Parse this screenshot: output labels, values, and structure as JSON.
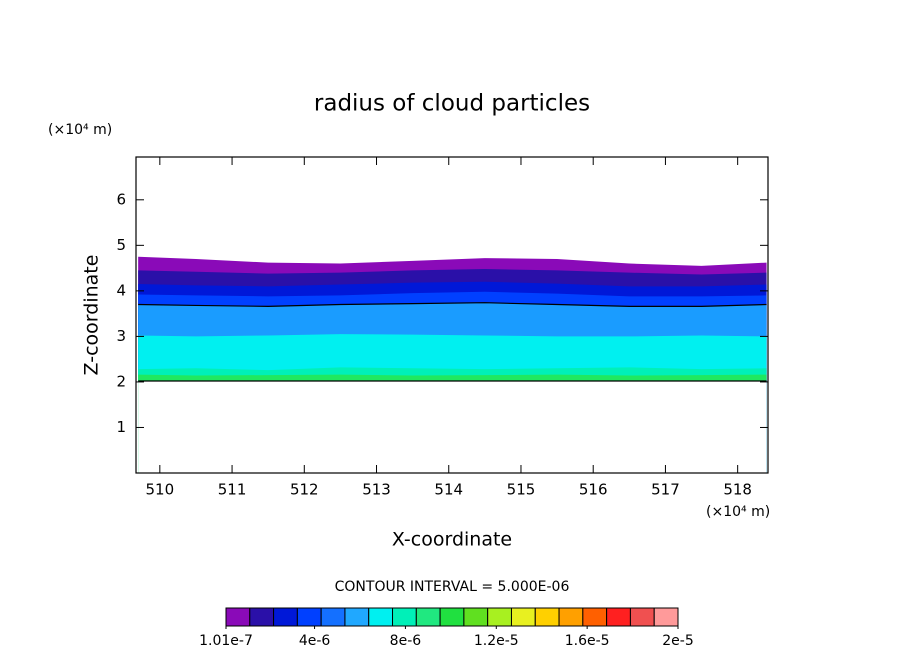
{
  "chart_data": {
    "type": "filled-contour",
    "title": "radius of cloud particles",
    "xlabel": "X-coordinate",
    "ylabel": "Z-coordinate",
    "x_unit_label": "(×10⁴ m)",
    "y_unit_label": "(×10⁴ m)",
    "xlim": [
      509.67,
      518.42
    ],
    "xticks": [
      510,
      511,
      512,
      513,
      514,
      515,
      516,
      517,
      518
    ],
    "ylim": [
      0,
      6.94
    ],
    "yticks": [
      1,
      2,
      3,
      4,
      5,
      6
    ],
    "x": [
      509.7,
      510.5,
      511.5,
      512.5,
      513.5,
      514.5,
      515.5,
      516.5,
      517.5,
      518.4
    ],
    "series": [
      {
        "color": "#8a0ab8",
        "values": [
          4.75,
          4.7,
          4.62,
          4.6,
          4.66,
          4.72,
          4.7,
          4.6,
          4.55,
          4.62
        ]
      },
      {
        "color": "#2a10a8",
        "values": [
          4.45,
          4.42,
          4.38,
          4.4,
          4.45,
          4.48,
          4.45,
          4.4,
          4.36,
          4.4
        ]
      },
      {
        "color": "#0018d8",
        "values": [
          4.15,
          4.12,
          4.1,
          4.14,
          4.18,
          4.2,
          4.16,
          4.1,
          4.1,
          4.14
        ]
      },
      {
        "color": "#0040ff",
        "values": [
          3.92,
          3.9,
          3.88,
          3.9,
          3.95,
          3.98,
          3.94,
          3.88,
          3.88,
          3.9
        ]
      },
      {
        "color": "#1a9cff",
        "values": [
          3.7,
          3.68,
          3.66,
          3.7,
          3.72,
          3.74,
          3.7,
          3.66,
          3.66,
          3.7
        ],
        "outline": "#000000"
      },
      {
        "color": "#00f0f0",
        "values": [
          3.02,
          3.0,
          3.02,
          3.05,
          3.04,
          3.02,
          3.0,
          3.0,
          3.02,
          3.0
        ]
      },
      {
        "color": "#00f0b8",
        "values": [
          2.28,
          2.3,
          2.26,
          2.32,
          2.3,
          2.28,
          2.3,
          2.32,
          2.28,
          2.3
        ]
      },
      {
        "color": "#20e860",
        "values": [
          2.16,
          2.14,
          2.15,
          2.16,
          2.14,
          2.15,
          2.16,
          2.14,
          2.15,
          2.16
        ]
      },
      {
        "color": "#ffffff",
        "values": [
          2.02,
          2.02,
          2.02,
          2.02,
          2.02,
          2.02,
          2.02,
          2.02,
          2.02,
          2.02
        ],
        "outline": "#000000"
      }
    ],
    "contour_interval_label": "CONTOUR INTERVAL = 5.000E-06",
    "colorbar": {
      "range": [
        1.01e-07,
        2e-05
      ],
      "colors": [
        "#8a0ab8",
        "#2a10a8",
        "#0018d8",
        "#0040ff",
        "#1470ff",
        "#20a8ff",
        "#00f0f0",
        "#00f0b8",
        "#20e880",
        "#20e040",
        "#60e020",
        "#a8f020",
        "#e8f020",
        "#ffd000",
        "#ffa000",
        "#ff6000",
        "#ff2020",
        "#f05050",
        "#ff9a9a"
      ],
      "ticks": [
        {
          "value": 1.01e-07,
          "label": "1.01e-7"
        },
        {
          "value": 4e-06,
          "label": "4e-6"
        },
        {
          "value": 8e-06,
          "label": "8e-6"
        },
        {
          "value": 1.2e-05,
          "label": "1.2e-5"
        },
        {
          "value": 1.6e-05,
          "label": "1.6e-5"
        },
        {
          "value": 2e-05,
          "label": "2e-5"
        }
      ]
    }
  }
}
